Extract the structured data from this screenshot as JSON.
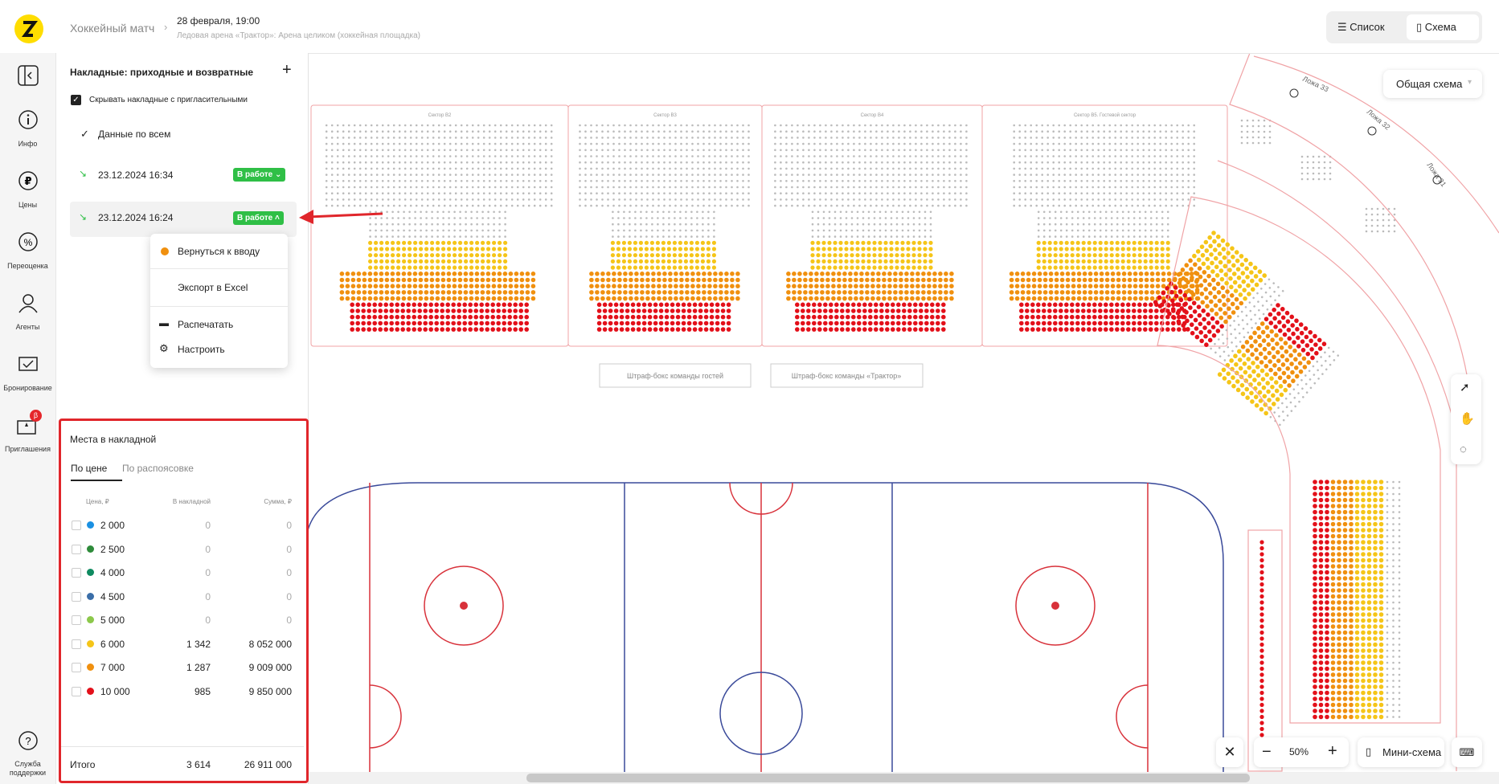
{
  "header": {
    "title": "Хоккейный матч",
    "date": "28 февраля, 19:00",
    "venue": "Ледовая арена «Трактор»: Арена целиком (хоккейная площадка)",
    "view_list": "Список",
    "view_scheme": "Схема"
  },
  "nav": [
    {
      "label": "Инфо"
    },
    {
      "label": "Цены"
    },
    {
      "label": "Переоценка"
    },
    {
      "label": "Агенты"
    },
    {
      "label": "Бронирование"
    },
    {
      "label": "Приглашения",
      "badge": "β"
    }
  ],
  "support": "Служба поддержки",
  "invoices": {
    "title": "Накладные: приходные и возвратные",
    "hide_invitations": "Скрывать накладные с пригласительными",
    "all_data": "Данные по всем",
    "items": [
      {
        "datetime": "23.12.2024 16:34",
        "status": "В работе"
      },
      {
        "datetime": "23.12.2024 16:24",
        "status": "В работе"
      }
    ]
  },
  "menu": [
    "Вернуться к вводу",
    "Экспорт в Excel",
    "Распечатать",
    "Настроить"
  ],
  "seats_table": {
    "title": "Места в накладной",
    "tabs": [
      "По цене",
      "По распоясовке"
    ],
    "columns": [
      "Цена, ₽",
      "В накладной",
      "Сумма, ₽"
    ],
    "rows": [
      {
        "price": "2 000",
        "count": "0",
        "sum": "0",
        "color": "#1a90e2"
      },
      {
        "price": "2 500",
        "count": "0",
        "sum": "0",
        "color": "#2e8b3a"
      },
      {
        "price": "4 000",
        "count": "0",
        "sum": "0",
        "color": "#0f8a60"
      },
      {
        "price": "4 500",
        "count": "0",
        "sum": "0",
        "color": "#3b6ea8"
      },
      {
        "price": "5 000",
        "count": "0",
        "sum": "0",
        "color": "#8cc84b"
      },
      {
        "price": "6 000",
        "count": "1 342",
        "sum": "8 052 000",
        "color": "#f5c518"
      },
      {
        "price": "7 000",
        "count": "1 287",
        "sum": "9 009 000",
        "color": "#f0900f"
      },
      {
        "price": "10 000",
        "count": "985",
        "sum": "9 850 000",
        "color": "#e3101a"
      }
    ],
    "total": {
      "label": "Итого",
      "count": "3 614",
      "sum": "26 911 000"
    }
  },
  "map": {
    "sectors": [
      "Сектор B2",
      "Сектор B3",
      "Сектор B4",
      "Сектор B5. Гостевой сектор"
    ],
    "boxes": [
      "Ложа 33",
      "Ложа 32",
      "Ложа 31"
    ],
    "penalty": [
      "Штраф-бокс команды гостей",
      "Штраф-бокс команды «Трактор»"
    ],
    "overview": "Общая схема",
    "zoom": "50%",
    "minimap": "Мини-схема"
  }
}
